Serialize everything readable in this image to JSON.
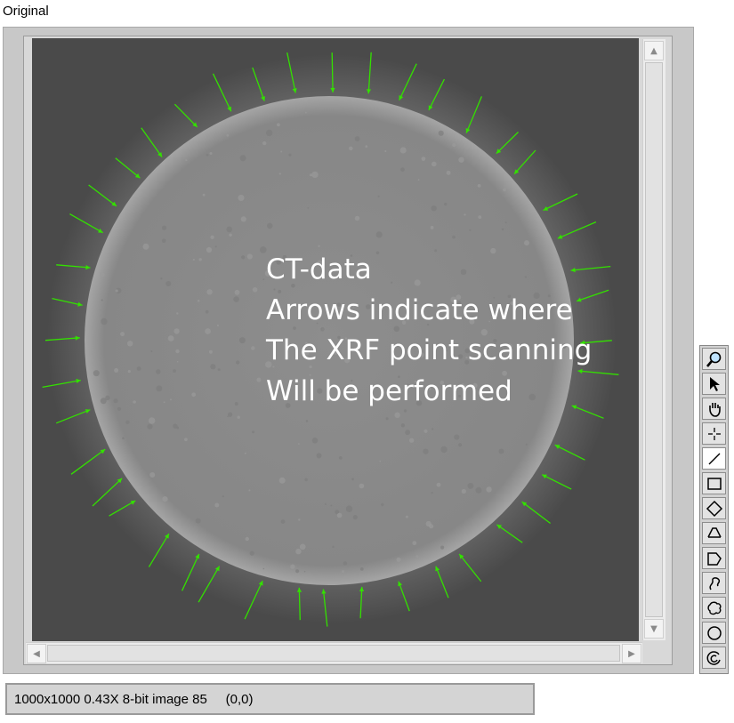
{
  "window": {
    "title": "Original"
  },
  "image": {
    "overlay_lines": [
      "CT-data",
      "Arrows indicate where",
      "The XRF point scanning",
      "Will be performed"
    ],
    "background_color": "#4a4a4a",
    "disk_color": "#8b8b8b",
    "arrow_color": "#33e000"
  },
  "status_bar": {
    "text": "1000x1000 0.43X 8-bit image 85     (0,0)"
  },
  "tools": [
    {
      "name": "zoom-icon",
      "selected": false
    },
    {
      "name": "pointer-icon",
      "selected": false
    },
    {
      "name": "pan-hand-icon",
      "selected": false
    },
    {
      "name": "point-icon",
      "selected": false
    },
    {
      "name": "line-icon",
      "selected": true
    },
    {
      "name": "rectangle-icon",
      "selected": false
    },
    {
      "name": "rotated-rectangle-icon",
      "selected": false
    },
    {
      "name": "annulus-icon",
      "selected": false
    },
    {
      "name": "polygon-icon",
      "selected": false
    },
    {
      "name": "freehand-line-icon",
      "selected": false
    },
    {
      "name": "freehand-region-icon",
      "selected": false
    },
    {
      "name": "oval-icon",
      "selected": false
    },
    {
      "name": "broken-ring-icon",
      "selected": false
    }
  ]
}
